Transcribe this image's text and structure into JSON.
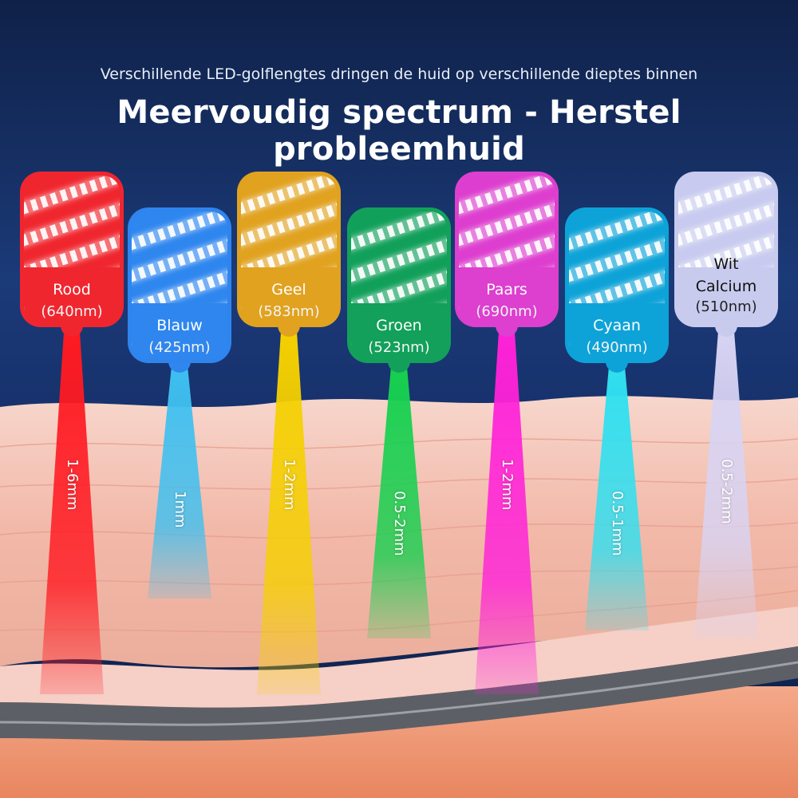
{
  "header": {
    "subtitle": "Verschillende LED-golflengtes dringen de huid op verschillende dieptes binnen",
    "title": "Meervoudig spectrum - Herstel probleemhuid"
  },
  "lights": [
    {
      "name": "Rood",
      "wavelength": "(640nm)",
      "depth": "1-6mm",
      "color": "#f0262f",
      "beam": "#ff1a22"
    },
    {
      "name": "Blauw",
      "wavelength": "(425nm)",
      "depth": "1mm",
      "color": "#2f86ee",
      "beam": "#3fc0f0"
    },
    {
      "name": "Geel",
      "wavelength": "(583nm)",
      "depth": "1-2mm",
      "color": "#e1a21f",
      "beam": "#f5d000"
    },
    {
      "name": "Groen",
      "wavelength": "(523nm)",
      "depth": "0.5-2mm",
      "color": "#12a05a",
      "beam": "#18d050"
    },
    {
      "name": "Paars",
      "wavelength": "(690nm)",
      "depth": "1-2mm",
      "color": "#dd3fcf",
      "beam": "#ff22d8"
    },
    {
      "name": "Cyaan",
      "wavelength": "(490nm)",
      "depth": "0.5-1mm",
      "color": "#0ea3d8",
      "beam": "#30e0f0"
    },
    {
      "name": "Wit",
      "name2": "Calcium",
      "wavelength": "(510nm)",
      "depth": "0.5-2mm",
      "color": "#c8cbee",
      "beam": "#d8d4f4"
    }
  ]
}
